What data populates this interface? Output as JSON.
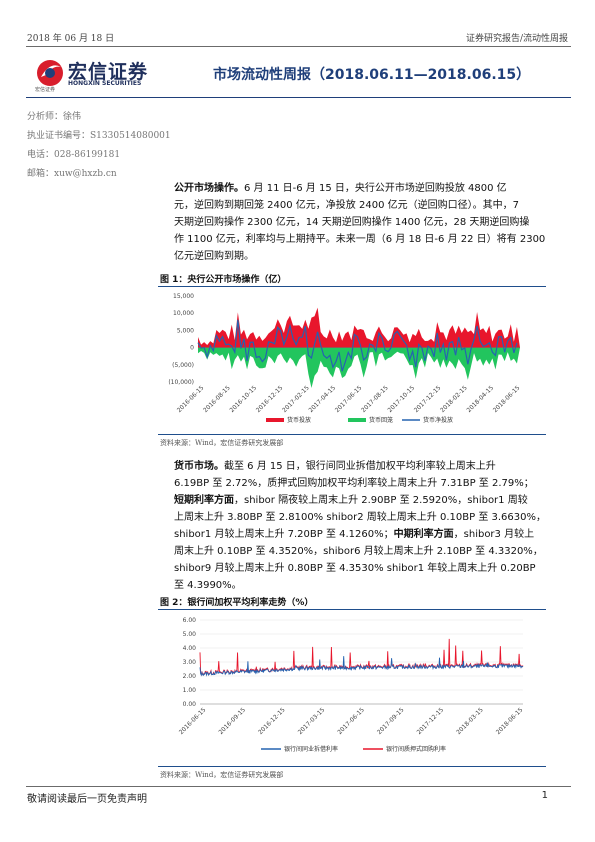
{
  "header": {
    "date": "2018 年 06 月 18 日",
    "category": "证券研究报告/流动性周报",
    "logo_cn": "宏信证券",
    "logo_en": "HONGXIN SECURITIES",
    "logo_sub": "宏信证券",
    "title": "市场流动性周报（2018.06.11—2018.06.15）"
  },
  "analyst": {
    "name_label": "分析师：",
    "name": "徐伟",
    "cert_label": "执业证书编号：",
    "cert": "S1330514080001",
    "phone_label": "电话：",
    "phone": "028-86199181",
    "email_label": "邮箱：",
    "email": "xuw@hxzb.cn"
  },
  "section1": {
    "lines": [
      "公开市场操作。6 月 11 日-6 月 15 日，央行公开市场逆回购投放 4800 亿",
      "元，逆回购到期回笼 2400 亿元，净投放 2400 亿元（逆回购口径）。其中，7",
      "天期逆回购操作 2300 亿元，14 天期逆回购操作 1400 亿元，28 天期逆回购操",
      "作 1100 亿元，利率均与上期持平。未来一周（6 月 18 日-6 月 22 日）将有 2300",
      "亿元逆回购到期。"
    ],
    "bold_lead": "公开市场操作。"
  },
  "figure1": {
    "caption": "图 1：央行公开市场操作（亿）",
    "source": "资料来源：Wind，宏信证券研究发展部"
  },
  "section2": {
    "lines": [
      "货币市场。截至 6 月 15 日，银行间同业拆借加权平均利率较上周末上升",
      "6.19BP 至 2.72%，质押式回购加权平均利率较上周末上升 7.31BP 至 2.79%；",
      "短期利率方面，shibor 隔夜较上周末上升 2.90BP 至 2.5920%，shibor1 周较",
      "上周末上升 3.80BP 至 2.8100% shibor2 周较上周末上升 0.10BP 至 3.6630%，",
      "shibor1 月较上周末上升 7.20BP 至 4.1260%；中期利率方面，shibor3 月较上",
      "周末上升 0.10BP 至 4.3520%，shibor6 月较上周末上升 2.10BP 至 4.3320%，",
      "shibor9 月较上周末上升 0.80BP 至 4.3530% shibor1 年较上周末上升 0.20BP",
      "至 4.3990%。"
    ]
  },
  "figure2": {
    "caption": "图 2：银行间加权平均利率走势（%）",
    "source": "资料来源：Wind，宏信证券研究发展部"
  },
  "footer": {
    "disclaimer": "敬请阅读最后一页免责声明",
    "page": "1"
  },
  "chart_data": [
    {
      "type": "bar",
      "title": "",
      "yticks": [
        "15,000",
        "10,000",
        "5,000",
        "0",
        "(5,000)",
        "(10,000)"
      ],
      "ylim": [
        -10000,
        15000
      ],
      "xticks": [
        "2016-06-15",
        "2016-08-15",
        "2016-10-15",
        "2016-12-15",
        "2017-02-15",
        "2017-04-15",
        "2017-06-15",
        "2017-08-15",
        "2017-10-15",
        "2017-12-15",
        "2018-02-15",
        "2018-04-15",
        "2018-06-15"
      ],
      "series": [
        {
          "name": "货币投放",
          "color": "#e8162c"
        },
        {
          "name": "货币回笼",
          "color": "#22c55e"
        },
        {
          "name": "货币净投放",
          "color": "#2563b0"
        }
      ],
      "legend": "bottom",
      "note": "Weekly series (~105 points); values estimated from plot envelope."
    },
    {
      "type": "line",
      "title": "",
      "yticks": [
        "6.00",
        "5.00",
        "4.00",
        "3.00",
        "2.00",
        "1.00",
        "0.00"
      ],
      "ylim": [
        0,
        6
      ],
      "xticks": [
        "2016-06-15",
        "2016-09-15",
        "2016-12-15",
        "2017-03-15",
        "2017-06-15",
        "2017-09-15",
        "2017-12-15",
        "2018-03-15",
        "2018-06-15"
      ],
      "series": [
        {
          "name": "银行间同业拆借利率",
          "color": "#2563b0"
        },
        {
          "name": "银行间质押式回购利率",
          "color": "#e8162c"
        }
      ],
      "legend": "bottom"
    }
  ]
}
